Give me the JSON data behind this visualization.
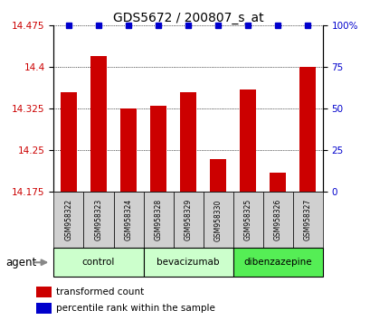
{
  "title": "GDS5672 / 200807_s_at",
  "samples": [
    "GSM958322",
    "GSM958323",
    "GSM958324",
    "GSM958328",
    "GSM958329",
    "GSM958330",
    "GSM958325",
    "GSM958326",
    "GSM958327"
  ],
  "bar_values": [
    14.355,
    14.42,
    14.325,
    14.33,
    14.355,
    14.235,
    14.36,
    14.21,
    14.4
  ],
  "percentile_values": [
    100,
    100,
    100,
    100,
    100,
    100,
    100,
    100,
    100
  ],
  "bar_color": "#cc0000",
  "dot_color": "#0000cc",
  "ylim_left": [
    14.175,
    14.475
  ],
  "yticks_left": [
    14.175,
    14.25,
    14.325,
    14.4,
    14.475
  ],
  "yticks_right": [
    0,
    25,
    50,
    75,
    100
  ],
  "groups": [
    {
      "label": "control",
      "indices": [
        0,
        1,
        2
      ],
      "color": "#ccffcc"
    },
    {
      "label": "bevacizumab",
      "indices": [
        3,
        4,
        5
      ],
      "color": "#ccffcc"
    },
    {
      "label": "dibenzazepine",
      "indices": [
        6,
        7,
        8
      ],
      "color": "#55ee55"
    }
  ],
  "agent_label": "agent",
  "legend_items": [
    {
      "label": "transformed count",
      "color": "#cc0000"
    },
    {
      "label": "percentile rank within the sample",
      "color": "#0000cc"
    }
  ],
  "title_fontsize": 10,
  "tick_fontsize": 7.5,
  "bar_width": 0.55,
  "background_color": "#ffffff",
  "sample_box_color": "#d0d0d0",
  "sample_fontsize": 5.5
}
